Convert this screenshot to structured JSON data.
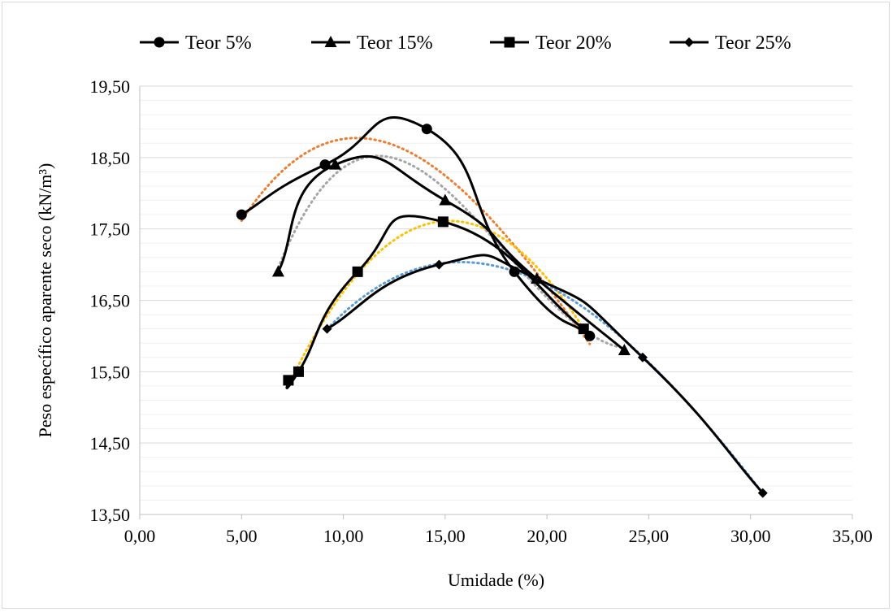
{
  "chart_data": {
    "type": "scatter",
    "title": "",
    "xlabel": "Umidade (%)",
    "ylabel": "Peso específico  aparente seco (kN/m³)",
    "xlim": [
      0,
      35
    ],
    "ylim": [
      13.5,
      19.5
    ],
    "x_ticks": [
      "0,00",
      "5,00",
      "10,00",
      "15,00",
      "20,00",
      "25,00",
      "30,00",
      "35,00"
    ],
    "y_ticks": [
      "13,50",
      "14,50",
      "15,50",
      "16,50",
      "17,50",
      "18,50",
      "19,50"
    ],
    "grid": "horizontal major and minor",
    "legend_position": "top",
    "line_color": "#000000",
    "series": [
      {
        "name": "Teor 5%",
        "marker": "circle",
        "trend_color": "#ed7d31",
        "x": [
          5.0,
          9.1,
          14.1,
          18.4,
          22.1
        ],
        "y": [
          17.7,
          18.4,
          18.9,
          16.9,
          16.0
        ]
      },
      {
        "name": "Teor 15%",
        "marker": "triangle",
        "trend_color": "#a5a5a5",
        "x": [
          6.8,
          9.6,
          15.0,
          19.5,
          23.8
        ],
        "y": [
          16.9,
          18.4,
          17.9,
          16.8,
          15.8
        ]
      },
      {
        "name": "Teor 20%",
        "marker": "square",
        "trend_color": "#ffc000",
        "x": [
          7.3,
          7.8,
          10.7,
          14.9,
          21.8
        ],
        "y": [
          15.38,
          15.5,
          16.9,
          17.6,
          16.1
        ]
      },
      {
        "name": "Teor 25%",
        "marker": "diamond",
        "trend_color": "#5b9bd5",
        "x": [
          9.2,
          14.7,
          19.5,
          24.7,
          30.6
        ],
        "y": [
          16.1,
          17.0,
          16.8,
          15.7,
          13.8
        ]
      }
    ]
  }
}
